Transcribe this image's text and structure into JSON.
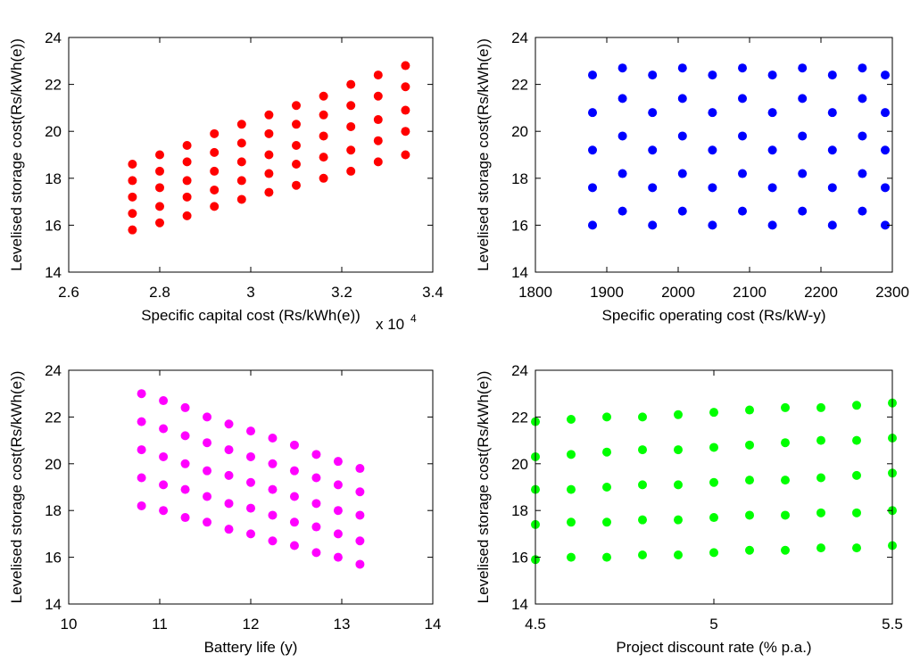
{
  "chart_data": [
    {
      "type": "scatter",
      "color": "#ff0000",
      "xlabel": "Specific capital cost (Rs/kWh(e))",
      "ylabel": "Levelised storage cost(Rs/kWh(e))",
      "x_multiplier": {
        "text": "x 10",
        "exponent": "4"
      },
      "xlim": [
        2.6,
        3.4
      ],
      "xticks": [
        2.6,
        2.8,
        3,
        3.2,
        3.4
      ],
      "ylim": [
        14,
        24
      ],
      "yticks": [
        14,
        16,
        18,
        20,
        22,
        24
      ],
      "x": [
        2.74,
        2.74,
        2.74,
        2.74,
        2.74,
        2.8,
        2.8,
        2.8,
        2.8,
        2.8,
        2.86,
        2.86,
        2.86,
        2.86,
        2.86,
        2.92,
        2.92,
        2.92,
        2.92,
        2.92,
        2.98,
        2.98,
        2.98,
        2.98,
        2.98,
        3.04,
        3.04,
        3.04,
        3.04,
        3.04,
        3.1,
        3.1,
        3.1,
        3.1,
        3.1,
        3.16,
        3.16,
        3.16,
        3.16,
        3.16,
        3.22,
        3.22,
        3.22,
        3.22,
        3.22,
        3.28,
        3.28,
        3.28,
        3.28,
        3.28,
        3.34,
        3.34,
        3.34,
        3.34,
        3.34
      ],
      "values": [
        15.8,
        16.5,
        17.2,
        17.9,
        18.6,
        16.1,
        16.8,
        17.6,
        18.3,
        19.0,
        16.4,
        17.2,
        17.9,
        18.7,
        19.4,
        16.8,
        17.5,
        18.3,
        19.1,
        19.9,
        17.1,
        17.9,
        18.7,
        19.5,
        20.3,
        17.4,
        18.2,
        19.0,
        19.9,
        20.7,
        17.7,
        18.6,
        19.4,
        20.3,
        21.1,
        18.0,
        18.9,
        19.8,
        20.7,
        21.5,
        18.3,
        19.2,
        20.2,
        21.1,
        22.0,
        18.7,
        19.6,
        20.5,
        21.5,
        22.4,
        19.0,
        20.0,
        20.9,
        21.9,
        22.8
      ]
    },
    {
      "type": "scatter",
      "color": "#0000ff",
      "xlabel": "Specific operating cost (Rs/kW-y)",
      "ylabel": "Levelised storage cost(Rs/kWh(e))",
      "xlim": [
        1800,
        2300
      ],
      "xticks": [
        1800,
        1900,
        2000,
        2100,
        2200,
        2300
      ],
      "ylim": [
        14,
        24
      ],
      "yticks": [
        14,
        16,
        18,
        20,
        22,
        24
      ],
      "x": [
        1880,
        1880,
        1880,
        1880,
        1880,
        1922,
        1922,
        1922,
        1922,
        1922,
        1964,
        1964,
        1964,
        1964,
        1964,
        2006,
        2006,
        2006,
        2006,
        2006,
        2048,
        2048,
        2048,
        2048,
        2048,
        2090,
        2090,
        2090,
        2090,
        2090,
        2132,
        2132,
        2132,
        2132,
        2132,
        2174,
        2174,
        2174,
        2174,
        2174,
        2216,
        2216,
        2216,
        2216,
        2216,
        2258,
        2258,
        2258,
        2258,
        2258,
        2290,
        2290,
        2290,
        2290,
        2290
      ],
      "values": [
        16.0,
        17.6,
        19.2,
        20.8,
        22.4,
        16.6,
        18.2,
        19.8,
        21.4,
        22.7,
        16.0,
        17.6,
        19.2,
        20.8,
        22.4,
        16.6,
        18.2,
        19.8,
        21.4,
        22.7,
        16.0,
        17.6,
        19.2,
        20.8,
        22.4,
        16.6,
        18.2,
        19.8,
        21.4,
        22.7,
        16.0,
        17.6,
        19.2,
        20.8,
        22.4,
        16.6,
        18.2,
        19.8,
        21.4,
        22.7,
        16.0,
        17.6,
        19.2,
        20.8,
        22.4,
        16.6,
        18.2,
        19.8,
        21.4,
        22.7,
        16.0,
        17.6,
        19.2,
        20.8,
        22.4
      ]
    },
    {
      "type": "scatter",
      "color": "#ff00ff",
      "xlabel": "Battery life (y)",
      "ylabel": "Levelised storage cost(Rs/kWh(e))",
      "xlim": [
        10,
        14
      ],
      "xticks": [
        10,
        11,
        12,
        13,
        14
      ],
      "ylim": [
        14,
        24
      ],
      "yticks": [
        14,
        16,
        18,
        20,
        22,
        24
      ],
      "x": [
        10.8,
        10.8,
        10.8,
        10.8,
        10.8,
        11.04,
        11.04,
        11.04,
        11.04,
        11.04,
        11.28,
        11.28,
        11.28,
        11.28,
        11.28,
        11.52,
        11.52,
        11.52,
        11.52,
        11.52,
        11.76,
        11.76,
        11.76,
        11.76,
        11.76,
        12.0,
        12.0,
        12.0,
        12.0,
        12.0,
        12.24,
        12.24,
        12.24,
        12.24,
        12.24,
        12.48,
        12.48,
        12.48,
        12.48,
        12.48,
        12.72,
        12.72,
        12.72,
        12.72,
        12.72,
        12.96,
        12.96,
        12.96,
        12.96,
        12.96,
        13.2,
        13.2,
        13.2,
        13.2,
        13.2
      ],
      "values": [
        18.2,
        19.4,
        20.6,
        21.8,
        23.0,
        18.0,
        19.1,
        20.3,
        21.5,
        22.7,
        17.7,
        18.9,
        20.0,
        21.2,
        22.4,
        17.5,
        18.6,
        19.7,
        20.9,
        22.0,
        17.2,
        18.3,
        19.5,
        20.6,
        21.7,
        17.0,
        18.1,
        19.2,
        20.3,
        21.4,
        16.7,
        17.8,
        18.9,
        20.0,
        21.1,
        16.5,
        17.5,
        18.6,
        19.7,
        20.8,
        16.2,
        17.3,
        18.3,
        19.4,
        20.4,
        16.0,
        17.0,
        18.0,
        19.1,
        20.1,
        15.7,
        16.7,
        17.8,
        18.8,
        19.8
      ]
    },
    {
      "type": "scatter",
      "color": "#00ff00",
      "xlabel": "Project discount rate (% p.a.)",
      "ylabel": "Levelised storage cost(Rs/kWh(e))",
      "xlim": [
        4.5,
        5.5
      ],
      "xticks": [
        4.5,
        5,
        5.5
      ],
      "ylim": [
        14,
        24
      ],
      "yticks": [
        14,
        16,
        18,
        20,
        22,
        24
      ],
      "x": [
        4.5,
        4.5,
        4.5,
        4.5,
        4.5,
        4.6,
        4.6,
        4.6,
        4.6,
        4.6,
        4.7,
        4.7,
        4.7,
        4.7,
        4.7,
        4.8,
        4.8,
        4.8,
        4.8,
        4.8,
        4.9,
        4.9,
        4.9,
        4.9,
        4.9,
        5.0,
        5.0,
        5.0,
        5.0,
        5.0,
        5.1,
        5.1,
        5.1,
        5.1,
        5.1,
        5.2,
        5.2,
        5.2,
        5.2,
        5.2,
        5.3,
        5.3,
        5.3,
        5.3,
        5.3,
        5.4,
        5.4,
        5.4,
        5.4,
        5.4,
        5.5,
        5.5,
        5.5,
        5.5,
        5.5
      ],
      "values": [
        15.9,
        17.4,
        18.9,
        20.3,
        21.8,
        16.0,
        17.5,
        18.9,
        20.4,
        21.9,
        16.0,
        17.5,
        19.0,
        20.5,
        22.0,
        16.1,
        17.6,
        19.1,
        20.6,
        22.0,
        16.1,
        17.6,
        19.1,
        20.6,
        22.1,
        16.2,
        17.7,
        19.2,
        20.7,
        22.2,
        16.3,
        17.8,
        19.3,
        20.8,
        22.3,
        16.3,
        17.8,
        19.3,
        20.9,
        22.4,
        16.4,
        17.9,
        19.4,
        21.0,
        22.4,
        16.4,
        17.9,
        19.5,
        21.0,
        22.5,
        16.5,
        18.0,
        19.6,
        21.1,
        22.6
      ]
    }
  ]
}
